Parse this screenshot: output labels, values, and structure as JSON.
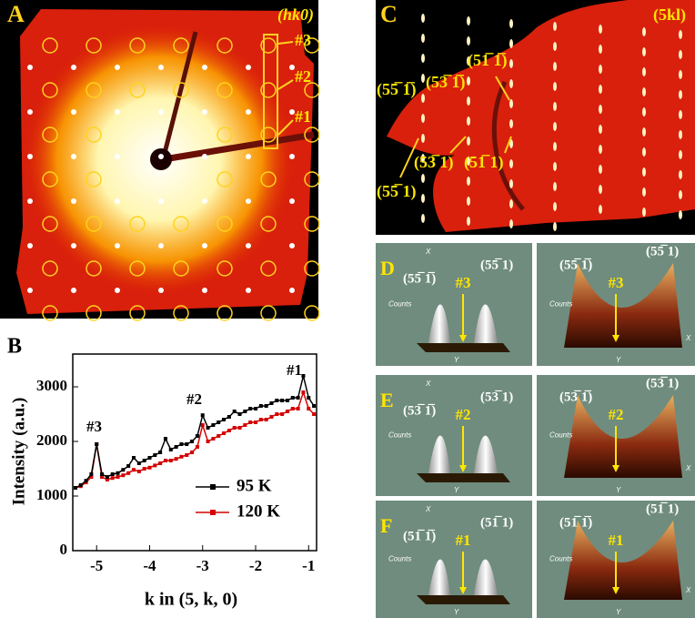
{
  "panels": {
    "A": {
      "label": "A",
      "index": "(hk0)",
      "markers": [
        "#3",
        "#2",
        "#1"
      ]
    },
    "C": {
      "label": "C",
      "index": "(5kl)",
      "reflections": [
        "(55̅ 1̅)",
        "(53̅ 1̅)",
        "(51̅ 1̅)",
        "(55̅ 1)",
        "(53̅ 1)",
        "(51̅ 1)"
      ]
    },
    "D": {
      "label": "D",
      "peaks": [
        "(55̅ 1̅)",
        "(55̅ 1)"
      ],
      "marker": "#3",
      "axis": "Counts",
      "y_axis": "Y",
      "x_axis": "X"
    },
    "E": {
      "label": "E",
      "peaks": [
        "(53̅ 1̅)",
        "(53̅ 1)"
      ],
      "marker": "#2",
      "axis": "Counts",
      "y_axis": "Y",
      "x_axis": "X"
    },
    "F": {
      "label": "F",
      "peaks": [
        "(51̅ 1̅)",
        "(51̅ 1)"
      ],
      "marker": "#1",
      "axis": "Counts",
      "y_axis": "Y",
      "x_axis": "X"
    }
  },
  "chart_data": {
    "type": "line",
    "title": "B",
    "x_label": "k in (5, k, 0)",
    "y_label": "Intensity (a.u.)",
    "x": [
      -5.4,
      -5.3,
      -5.2,
      -5.1,
      -5.0,
      -4.9,
      -4.8,
      -4.7,
      -4.6,
      -4.5,
      -4.4,
      -4.3,
      -4.2,
      -4.1,
      -4.0,
      -3.9,
      -3.8,
      -3.7,
      -3.6,
      -3.5,
      -3.4,
      -3.3,
      -3.2,
      -3.1,
      -3.0,
      -2.9,
      -2.8,
      -2.7,
      -2.6,
      -2.5,
      -2.4,
      -2.3,
      -2.2,
      -2.1,
      -2.0,
      -1.9,
      -1.8,
      -1.7,
      -1.6,
      -1.5,
      -1.4,
      -1.3,
      -1.2,
      -1.1,
      -1.0,
      -0.9
    ],
    "series": [
      {
        "name": "95 K",
        "color": "#000000",
        "values": [
          1150,
          1200,
          1280,
          1400,
          1950,
          1400,
          1350,
          1400,
          1420,
          1480,
          1550,
          1700,
          1600,
          1650,
          1700,
          1750,
          1800,
          2050,
          1850,
          1900,
          1950,
          1950,
          2000,
          2100,
          2480,
          2250,
          2300,
          2350,
          2400,
          2450,
          2550,
          2500,
          2550,
          2600,
          2600,
          2650,
          2650,
          2700,
          2750,
          2750,
          2750,
          2800,
          2800,
          3200,
          2800,
          2650
        ]
      },
      {
        "name": "120 K",
        "color": "#d40000",
        "values": [
          1150,
          1180,
          1250,
          1350,
          1950,
          1350,
          1300,
          1330,
          1350,
          1380,
          1420,
          1480,
          1450,
          1500,
          1520,
          1560,
          1600,
          1650,
          1650,
          1680,
          1720,
          1750,
          1800,
          1900,
          2300,
          2000,
          2050,
          2100,
          2150,
          2200,
          2250,
          2250,
          2300,
          2350,
          2350,
          2400,
          2400,
          2450,
          2500,
          2500,
          2550,
          2600,
          2600,
          2900,
          2600,
          2500
        ]
      }
    ],
    "annotations": [
      "#3",
      "#2",
      "#1"
    ],
    "xlim": [
      -5.45,
      -0.85
    ],
    "ylim": [
      0,
      3600
    ],
    "xticks": [
      -5,
      -4,
      -3,
      -2,
      -1
    ],
    "yticks": [
      0,
      1000,
      2000,
      3000
    ]
  }
}
